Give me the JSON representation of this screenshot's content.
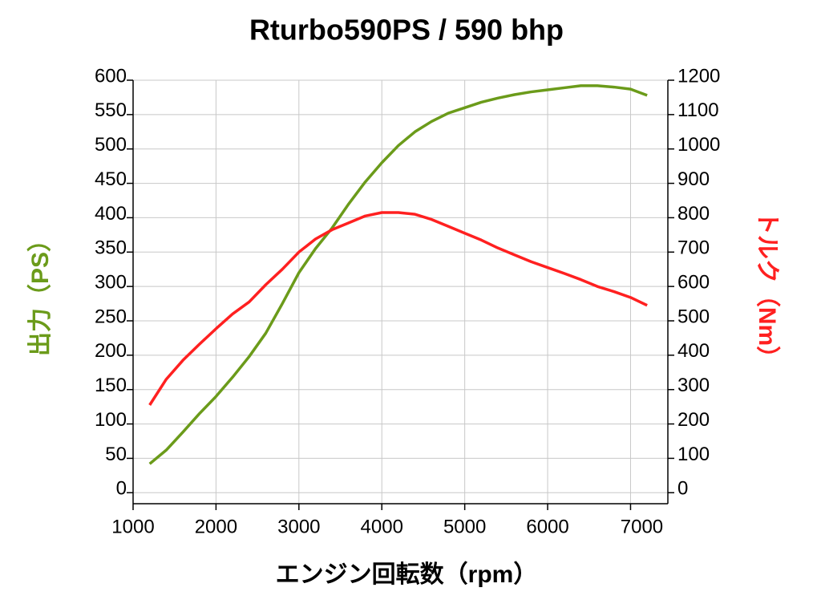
{
  "chart_data": {
    "type": "line",
    "title": "Rturbo590PS / 590 bhp",
    "x_label": "エンジン回転数（rpm）",
    "y_label": "出力（PS）",
    "y2_label": "トルク（Nm）",
    "x": [
      1200,
      1400,
      1600,
      1800,
      2000,
      2200,
      2400,
      2600,
      2800,
      3000,
      3200,
      3400,
      3600,
      3800,
      4000,
      4200,
      4400,
      4600,
      4800,
      5000,
      5200,
      5400,
      5600,
      5800,
      6000,
      6200,
      6400,
      6600,
      6800,
      7000,
      7200
    ],
    "series": [
      {
        "name": "出力（PS）",
        "color": "#6b9b1a",
        "axis": "y",
        "values": [
          42,
          62,
          88,
          115,
          140,
          168,
          198,
          232,
          275,
          320,
          355,
          385,
          420,
          452,
          480,
          505,
          525,
          540,
          552,
          560,
          568,
          574,
          579,
          583,
          586,
          589,
          592,
          592,
          590,
          587,
          578
        ]
      },
      {
        "name": "トルク（Nm）",
        "color": "#ff2020",
        "axis": "y2",
        "values": [
          255,
          330,
          385,
          432,
          477,
          520,
          555,
          605,
          650,
          700,
          738,
          765,
          785,
          805,
          815,
          815,
          810,
          795,
          775,
          755,
          735,
          712,
          692,
          672,
          655,
          638,
          620,
          600,
          585,
          568,
          545
        ]
      }
    ],
    "xlim": [
      1000,
      7450
    ],
    "xticks": [
      1000,
      2000,
      3000,
      4000,
      5000,
      6000,
      7000
    ],
    "ylim": [
      -16,
      600
    ],
    "yticks": [
      0,
      50,
      100,
      150,
      200,
      250,
      300,
      350,
      400,
      450,
      500,
      550,
      600
    ],
    "y2lim": [
      -32,
      1200
    ],
    "y2ticks": [
      0,
      100,
      200,
      300,
      400,
      500,
      600,
      700,
      800,
      900,
      1000,
      1100,
      1200
    ],
    "grid": true
  }
}
